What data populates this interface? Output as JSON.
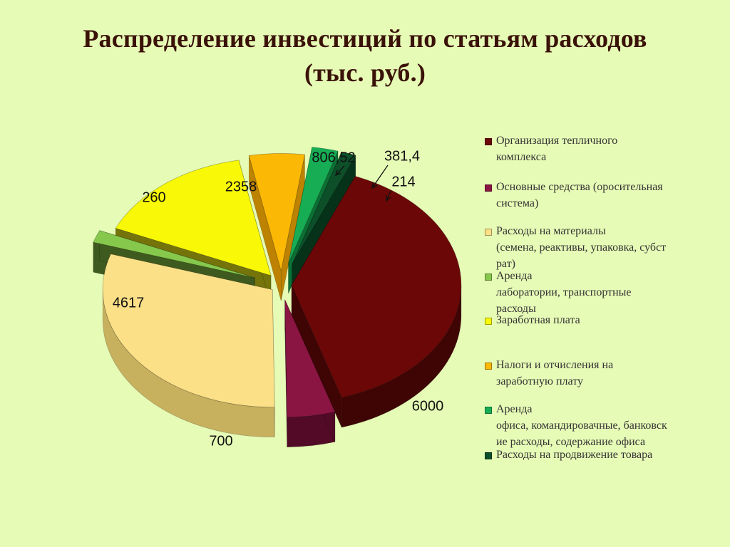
{
  "title": {
    "line1": "Распределение инвестиций по статьям расходов",
    "line2": "(тыс. руб.)"
  },
  "chart_data": {
    "type": "pie",
    "title": "Распределение инвестиций по статьям расходов (тыс. руб.)",
    "legend_position": "right",
    "series": [
      {
        "name": "Организация тепличного комплекса",
        "value": 6000,
        "label": "6000",
        "color": "#6b0707",
        "side": "#3f0404"
      },
      {
        "name": "Основные средства (оросительная система)",
        "value": 700,
        "label": "700",
        "color": "#8b1542",
        "side": "#520a26"
      },
      {
        "name": "Расходы на материалы (семена, реактивы, упаковка, субстрат)",
        "value": 4617,
        "label": "4617",
        "color": "#fbe087",
        "side": "#c7b05e"
      },
      {
        "name": "Аренда лаборатории, транспортные расходы",
        "value": 260,
        "label": "260",
        "color": "#86c84c",
        "side": "#3f5a1e"
      },
      {
        "name": "Заработная плата",
        "value": 2358,
        "label": "2358",
        "color": "#f8f807",
        "side": "#74740a"
      },
      {
        "name": "Налоги и отчисления на заработную плату",
        "value": 806.52,
        "label": "806,52",
        "color": "#fbb805",
        "side": "#bd8200"
      },
      {
        "name": "Аренда офиса, командировачные, банковские расходы, содержание офиса",
        "value": 381.4,
        "label": "381,4",
        "color": "#17ad55",
        "side": "#0c7034"
      },
      {
        "name": "Расходы на продвижение товара",
        "value": 214,
        "label": "214",
        "color": "#0d4f29",
        "side": "#06321a"
      }
    ]
  },
  "legend": [
    {
      "text": "Организация тепличного\nкомплекса",
      "color": "#6b0707"
    },
    {
      "text": "Основные средства (оросительная\nсистема)",
      "color": "#8b1542"
    },
    {
      "text": "Расходы на материалы\n(семена, реактивы, упаковка, субст\nрат)",
      "color": "#fbe087"
    },
    {
      "text": "Аренда\nлаборатории, транспортные\nрасходы",
      "color": "#86c84c"
    },
    {
      "text": "Заработная плата",
      "color": "#f8f807"
    },
    {
      "text": "Налоги и отчисления на\nзаработную плату",
      "color": "#fbb805"
    },
    {
      "text": "Аренда\nофиса, командировачные, банковск\nие расходы, содержание офиса",
      "color": "#17ad55"
    },
    {
      "text": "Расходы на продвижение товара",
      "color": "#0d4f29"
    }
  ]
}
